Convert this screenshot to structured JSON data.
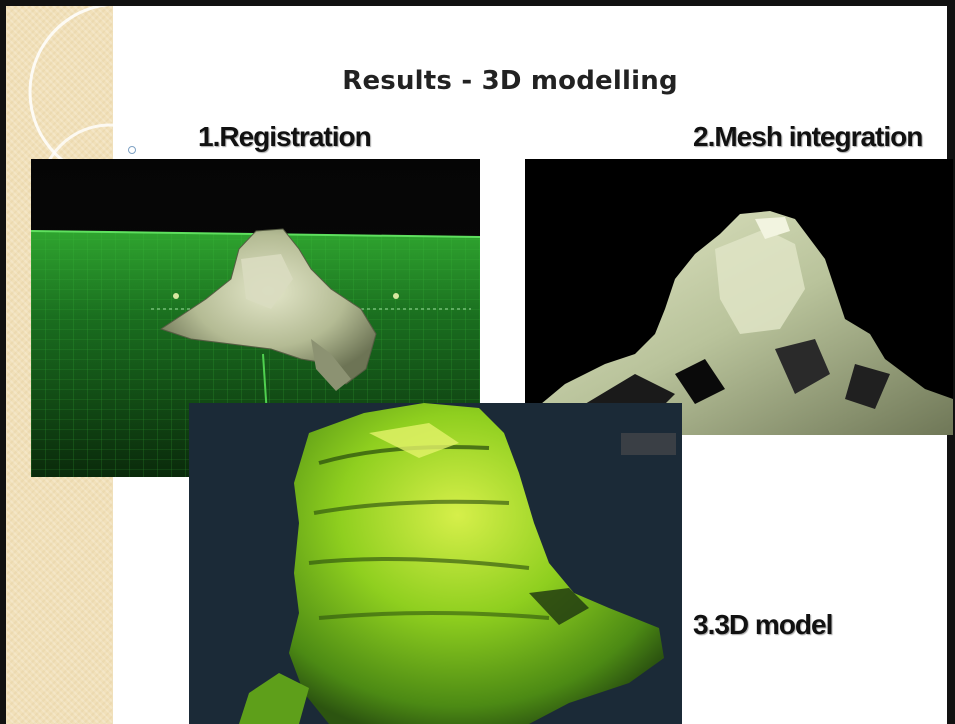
{
  "slide": {
    "title": "Results - 3D modelling",
    "steps": [
      {
        "label": "1.Registration"
      },
      {
        "label": "2.Mesh integration"
      },
      {
        "label": "3.3D model"
      }
    ]
  },
  "colors": {
    "sidebar": "#f1e0b9",
    "frame": "#111111",
    "registration_grid": "#2aa032",
    "registration_rock": "#c9cda7",
    "mesh_background": "#000000",
    "mesh_rock": "#cbd3ae",
    "model_background": "#1b2a37",
    "model_surface": "#7dc41f"
  },
  "images": {
    "registration": "point-cloud registration render on green grid",
    "mesh": "integrated rock mesh on black background",
    "model": "green shaded 3D rock model"
  }
}
